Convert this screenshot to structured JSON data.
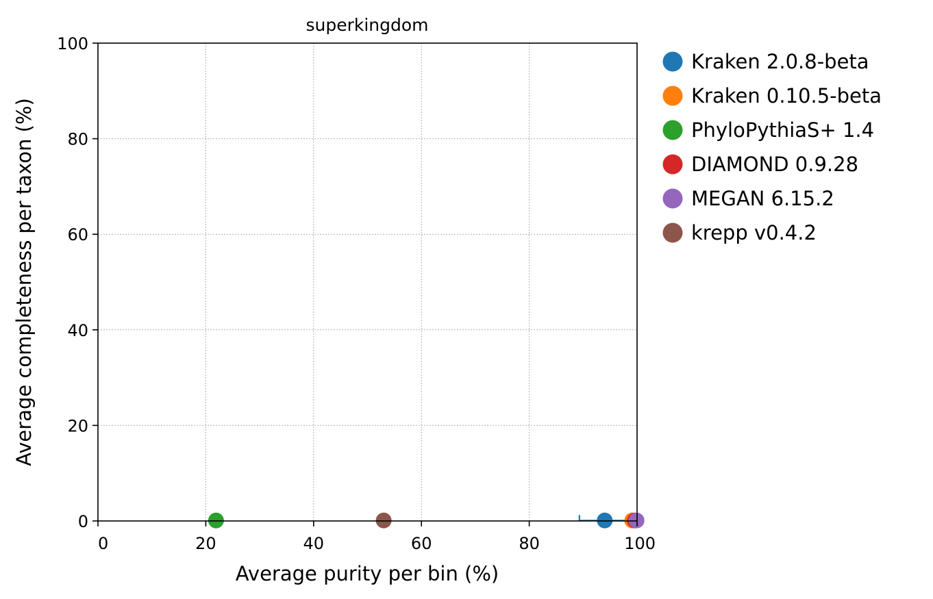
{
  "chart_data": {
    "type": "scatter",
    "title": "superkingdom",
    "xlabel": "Average purity per bin (%)",
    "ylabel": "Average completeness per taxon (%)",
    "xlim": [
      0,
      100
    ],
    "ylim": [
      0,
      100
    ],
    "xticks": [
      "0",
      "20",
      "40",
      "60",
      "80",
      "100"
    ],
    "yticks": [
      "0",
      "20",
      "40",
      "60",
      "80",
      "100"
    ],
    "grid": true,
    "legend_position": "outside-right",
    "series": [
      {
        "name": "Kraken 2.0.8-beta",
        "color": "#1f77b4",
        "x": 94.0,
        "y": 0.1,
        "x_error": 4.7
      },
      {
        "name": "Kraken 0.10.5-beta",
        "color": "#ff7f0e",
        "x": 99.1,
        "y": 0.1
      },
      {
        "name": "PhyloPythiaS+ 1.4",
        "color": "#2ca02c",
        "x": 21.9,
        "y": 0.1
      },
      {
        "name": "DIAMOND 0.9.28",
        "color": "#d62728",
        "x": 99.6,
        "y": 0.1
      },
      {
        "name": "MEGAN 6.15.2",
        "color": "#9467bd",
        "x": 99.9,
        "y": 0.1
      },
      {
        "name": "krepp v0.4.2",
        "color": "#8c564b",
        "x": 53.0,
        "y": 0.1
      }
    ]
  }
}
